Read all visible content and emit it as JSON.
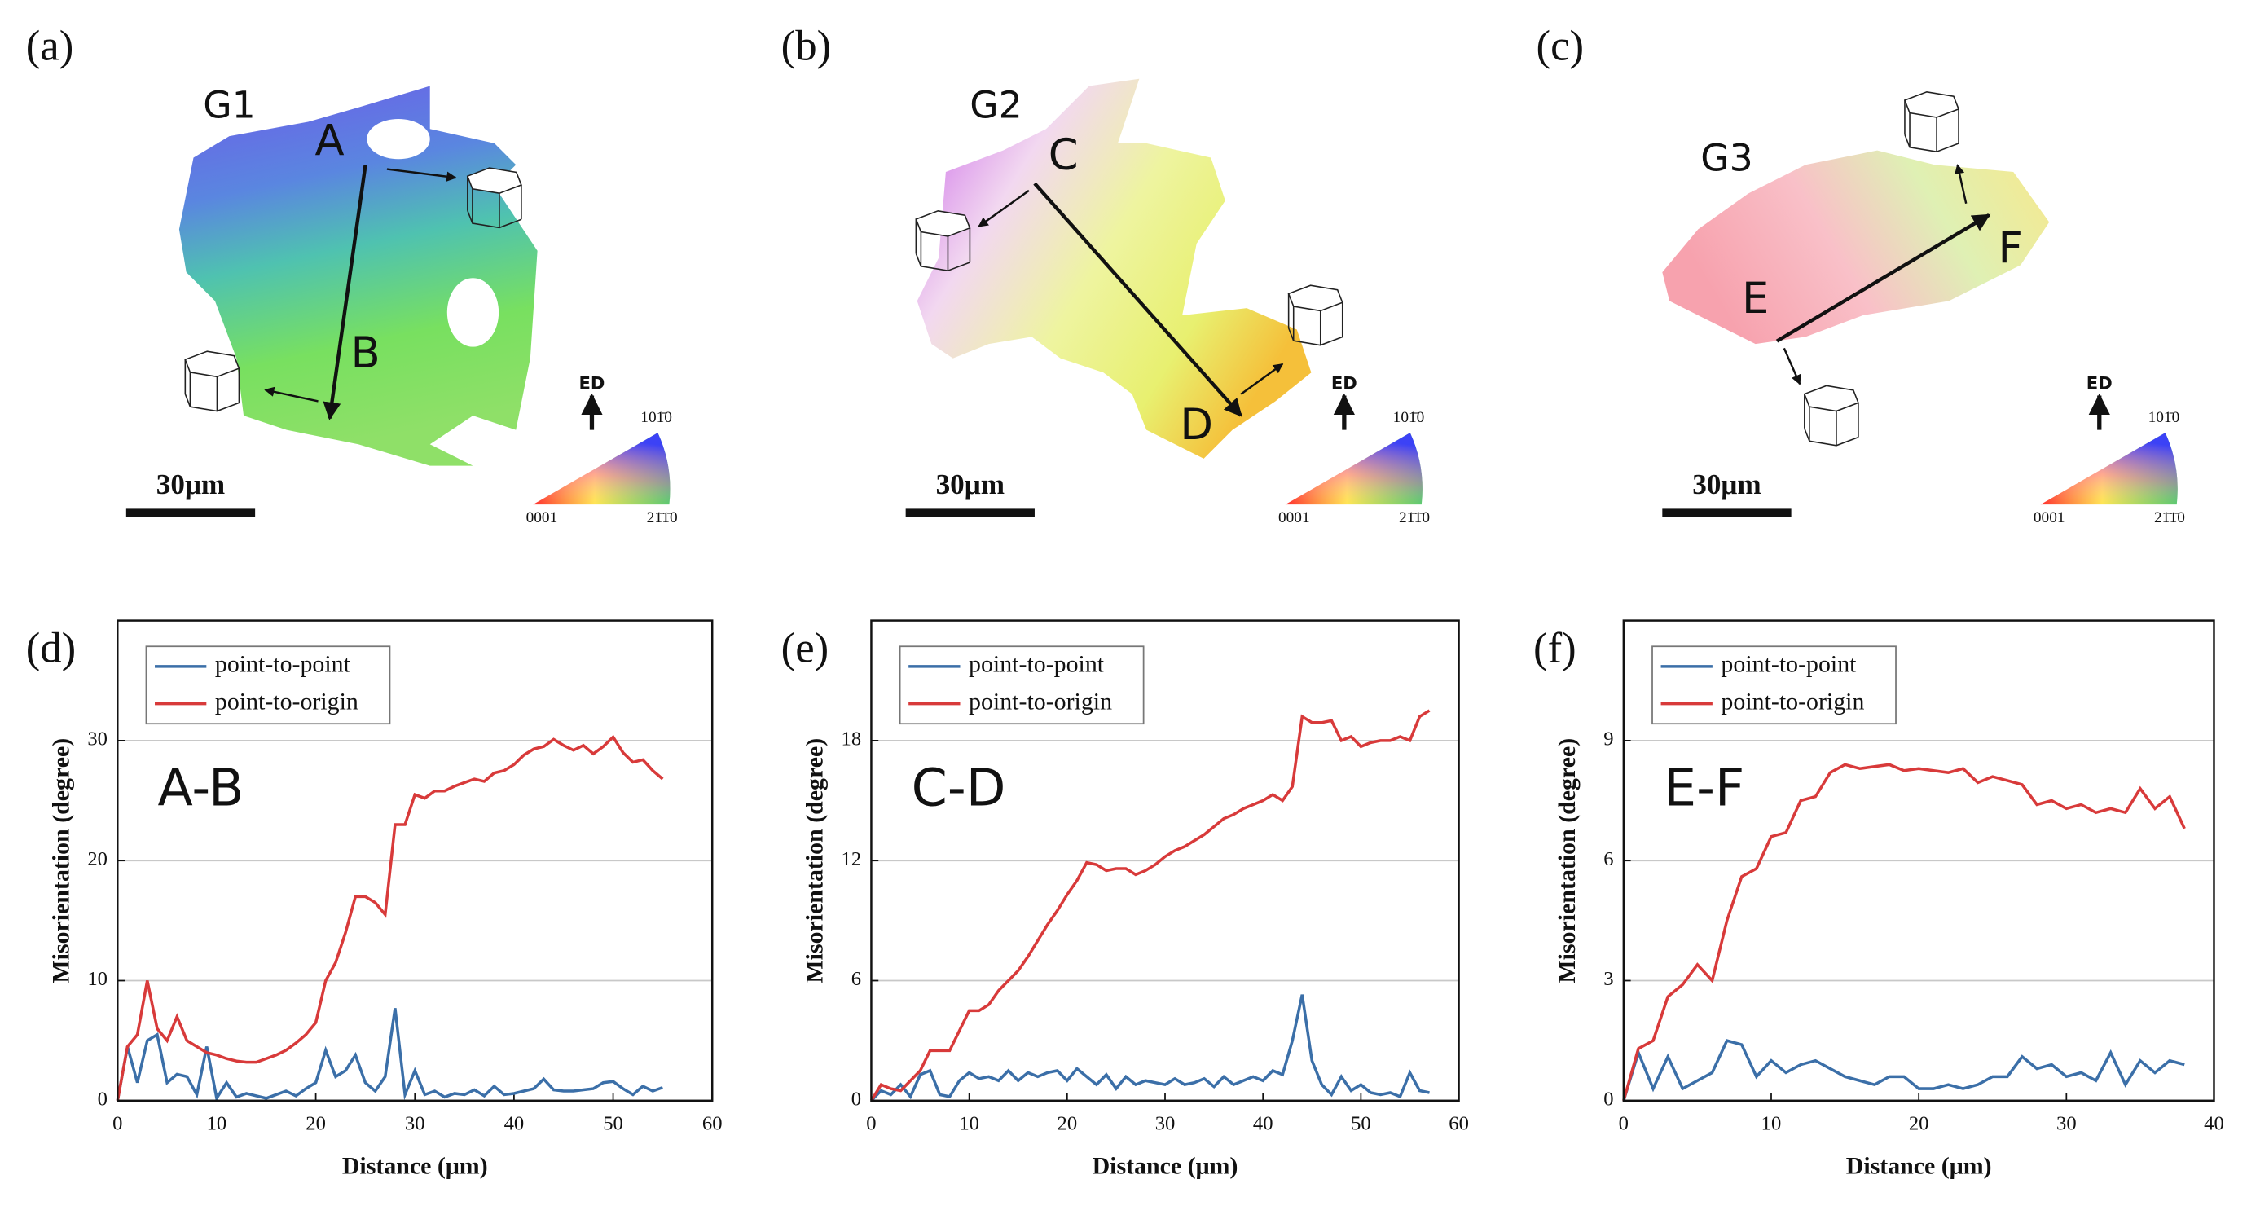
{
  "maps": [
    {
      "panel": "(a)",
      "grain": "G1",
      "start": "A",
      "end": "B",
      "scale_bar": "30μm",
      "direction": "ED",
      "ipf_labels": [
        "101̄0",
        "0001",
        "21̄1̄0"
      ]
    },
    {
      "panel": "(b)",
      "grain": "G2",
      "start": "C",
      "end": "D",
      "scale_bar": "30μm",
      "direction": "ED",
      "ipf_labels": [
        "101̄0",
        "0001",
        "21̄1̄0"
      ]
    },
    {
      "panel": "(c)",
      "grain": "G3",
      "start": "E",
      "end": "F",
      "scale_bar": "30μm",
      "direction": "ED",
      "ipf_labels": [
        "101̄0",
        "0001",
        "21̄1̄0"
      ]
    }
  ],
  "chart_data": [
    {
      "type": "line",
      "panel": "(d)",
      "annotation": "A-B",
      "xlabel": "Distance (μm)",
      "ylabel": "Misorientation (degree)",
      "x": [
        0,
        1,
        2,
        3,
        4,
        5,
        6,
        7,
        8,
        9,
        10,
        11,
        12,
        13,
        14,
        15,
        16,
        17,
        18,
        19,
        20,
        21,
        22,
        23,
        24,
        25,
        26,
        27,
        28,
        29,
        30,
        31,
        32,
        33,
        34,
        35,
        36,
        37,
        38,
        39,
        40,
        41,
        42,
        43,
        44,
        45,
        46,
        47,
        48,
        49,
        50,
        51,
        52,
        53,
        54,
        55
      ],
      "series": [
        {
          "name": "point-to-point",
          "color": "#3b6fa8",
          "values": [
            0,
            4.5,
            1.5,
            5,
            5.5,
            1.5,
            2.2,
            2,
            0.5,
            4.5,
            0.2,
            1.5,
            0.3,
            0.6,
            0.4,
            0.2,
            0.5,
            0.8,
            0.4,
            1,
            1.5,
            4.2,
            2,
            2.5,
            3.8,
            1.5,
            0.8,
            2,
            7.7,
            0.5,
            2.5,
            0.5,
            0.8,
            0.3,
            0.6,
            0.5,
            0.9,
            0.4,
            1.2,
            0.5,
            0.6,
            0.8,
            1,
            1.8,
            0.9,
            0.8,
            0.8,
            0.9,
            1,
            1.5,
            1.6,
            1,
            0.5,
            1.2,
            0.8,
            1.1
          ]
        },
        {
          "name": "point-to-origin",
          "color": "#d83a3a",
          "values": [
            0,
            4.5,
            5.5,
            10,
            6,
            5,
            7,
            5,
            4.5,
            4,
            3.8,
            3.5,
            3.3,
            3.2,
            3.2,
            3.5,
            3.8,
            4.2,
            4.8,
            5.5,
            6.5,
            10,
            11.5,
            14,
            17,
            17,
            16.5,
            15.5,
            23,
            23,
            25.5,
            25.2,
            25.8,
            25.8,
            26.2,
            26.5,
            26.8,
            26.6,
            27.3,
            27.5,
            28,
            28.8,
            29.3,
            29.5,
            30.1,
            29.6,
            29.2,
            29.6,
            28.9,
            29.5,
            30.3,
            29,
            28.2,
            28.4,
            27.5,
            26.8
          ]
        }
      ],
      "xlim": [
        0,
        60
      ],
      "ylim": [
        0,
        40
      ],
      "xticks": [
        0,
        10,
        20,
        30,
        40,
        50,
        60
      ],
      "yticks": [
        0,
        10,
        20,
        30
      ],
      "grid": true,
      "legend": "upper left"
    },
    {
      "type": "line",
      "panel": "(e)",
      "annotation": "C-D",
      "xlabel": "Distance (μm)",
      "ylabel": "Misorientation (degree)",
      "x": [
        0,
        1,
        2,
        3,
        4,
        5,
        6,
        7,
        8,
        9,
        10,
        11,
        12,
        13,
        14,
        15,
        16,
        17,
        18,
        19,
        20,
        21,
        22,
        23,
        24,
        25,
        26,
        27,
        28,
        29,
        30,
        31,
        32,
        33,
        34,
        35,
        36,
        37,
        38,
        39,
        40,
        41,
        42,
        43,
        44,
        45,
        46,
        47,
        48,
        49,
        50,
        51,
        52,
        53,
        54,
        55,
        56,
        57
      ],
      "series": [
        {
          "name": "point-to-point",
          "color": "#3b6fa8",
          "values": [
            0,
            0.5,
            0.3,
            0.8,
            0.2,
            1.3,
            1.5,
            0.3,
            0.2,
            1,
            1.4,
            1.1,
            1.2,
            1,
            1.5,
            1,
            1.4,
            1.2,
            1.4,
            1.5,
            1,
            1.6,
            1.2,
            0.8,
            1.3,
            0.6,
            1.2,
            0.8,
            1,
            0.9,
            0.8,
            1.1,
            0.8,
            0.9,
            1.1,
            0.7,
            1.2,
            0.8,
            1,
            1.2,
            1,
            1.5,
            1.3,
            3,
            5.3,
            2,
            0.8,
            0.3,
            1.2,
            0.5,
            0.8,
            0.4,
            0.3,
            0.4,
            0.2,
            1.4,
            0.5,
            0.4
          ]
        },
        {
          "name": "point-to-origin",
          "color": "#d83a3a",
          "values": [
            0,
            0.8,
            0.6,
            0.5,
            1,
            1.5,
            2.5,
            2.5,
            2.5,
            3.5,
            4.5,
            4.5,
            4.8,
            5.5,
            6,
            6.5,
            7.2,
            8,
            8.8,
            9.5,
            10.3,
            11,
            11.9,
            11.8,
            11.5,
            11.6,
            11.6,
            11.3,
            11.5,
            11.8,
            12.2,
            12.5,
            12.7,
            13,
            13.3,
            13.7,
            14.1,
            14.3,
            14.6,
            14.8,
            15,
            15.3,
            15,
            15.7,
            19.2,
            18.9,
            18.9,
            19,
            18,
            18.2,
            17.7,
            17.9,
            18,
            18,
            18.2,
            18,
            19.2,
            19.5
          ]
        }
      ],
      "xlim": [
        0,
        60
      ],
      "ylim": [
        0,
        24
      ],
      "xticks": [
        0,
        10,
        20,
        30,
        40,
        50,
        60
      ],
      "yticks": [
        0,
        6,
        12,
        18
      ],
      "grid": true,
      "legend": "upper left"
    },
    {
      "type": "line",
      "panel": "(f)",
      "annotation": "E-F",
      "xlabel": "Distance (μm)",
      "ylabel": "Misorientation (degree)",
      "x": [
        0,
        1,
        2,
        3,
        4,
        5,
        6,
        7,
        8,
        9,
        10,
        11,
        12,
        13,
        14,
        15,
        16,
        17,
        18,
        19,
        20,
        21,
        22,
        23,
        24,
        25,
        26,
        27,
        28,
        29,
        30,
        31,
        32,
        33,
        34,
        35,
        36,
        37,
        38
      ],
      "series": [
        {
          "name": "point-to-point",
          "color": "#3b6fa8",
          "values": [
            0,
            1.2,
            0.3,
            1.1,
            0.3,
            0.5,
            0.7,
            1.5,
            1.4,
            0.6,
            1,
            0.7,
            0.9,
            1,
            0.8,
            0.6,
            0.5,
            0.4,
            0.6,
            0.6,
            0.3,
            0.3,
            0.4,
            0.3,
            0.4,
            0.6,
            0.6,
            1.1,
            0.8,
            0.9,
            0.6,
            0.7,
            0.5,
            1.2,
            0.4,
            1,
            0.7,
            1,
            0.9
          ]
        },
        {
          "name": "point-to-origin",
          "color": "#d83a3a",
          "values": [
            0,
            1.3,
            1.5,
            2.6,
            2.9,
            3.4,
            3.0,
            4.5,
            5.6,
            5.8,
            6.6,
            6.7,
            7.5,
            7.6,
            8.2,
            8.4,
            8.3,
            8.35,
            8.4,
            8.25,
            8.3,
            8.25,
            8.2,
            8.3,
            7.95,
            8.1,
            8.0,
            7.9,
            7.4,
            7.5,
            7.3,
            7.4,
            7.2,
            7.3,
            7.2,
            7.8,
            7.3,
            7.6,
            6.8
          ]
        }
      ],
      "xlim": [
        0,
        40
      ],
      "ylim": [
        0,
        12
      ],
      "xticks": [
        0,
        10,
        20,
        30,
        40
      ],
      "yticks": [
        0,
        3,
        6,
        9
      ],
      "grid": true,
      "legend": "upper left"
    }
  ]
}
